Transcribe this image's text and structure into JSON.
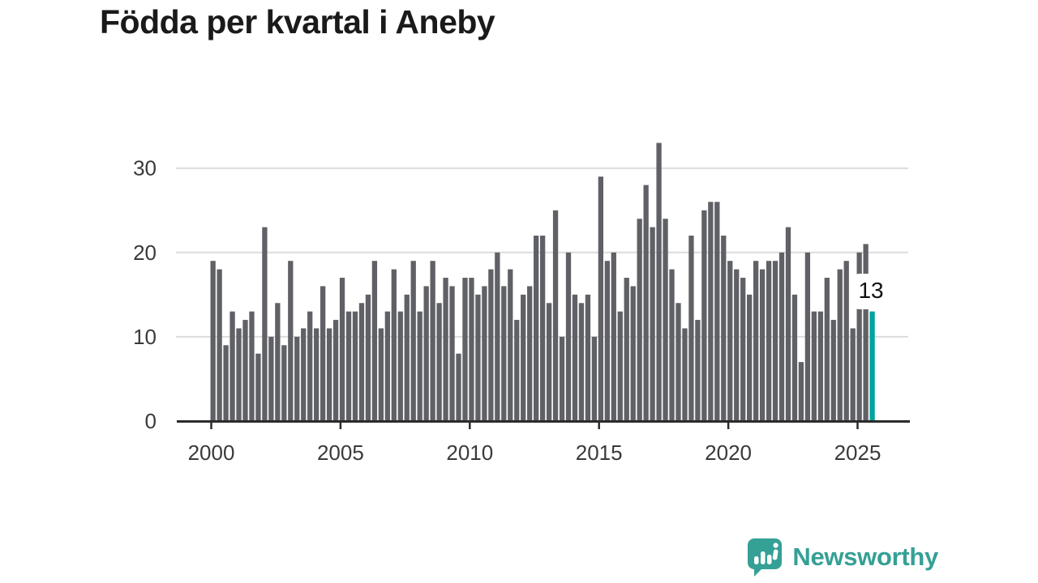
{
  "title": "Födda per kvartal i Aneby",
  "chart_data": {
    "type": "bar",
    "title": "Födda per kvartal i Aneby",
    "x_start_label": "2000 Q1",
    "x_end_label": "2025 Q3",
    "x_tick_labels": [
      "2000",
      "2005",
      "2010",
      "2015",
      "2020",
      "2025"
    ],
    "quarters_per_tick": 20,
    "y_ticks": [
      0,
      10,
      20,
      30
    ],
    "ylim": [
      0,
      33
    ],
    "grid": "horizontal",
    "legend": "none",
    "bar_color": "#606166",
    "values": [
      19,
      18,
      9,
      13,
      11,
      12,
      13,
      8,
      23,
      10,
      14,
      9,
      19,
      10,
      11,
      13,
      11,
      16,
      11,
      12,
      17,
      13,
      13,
      14,
      15,
      19,
      11,
      13,
      18,
      13,
      15,
      19,
      13,
      16,
      19,
      14,
      17,
      16,
      8,
      17,
      17,
      15,
      16,
      18,
      20,
      16,
      18,
      12,
      15,
      16,
      22,
      22,
      14,
      25,
      10,
      20,
      15,
      14,
      15,
      10,
      29,
      19,
      20,
      13,
      17,
      16,
      24,
      28,
      23,
      33,
      24,
      18,
      14,
      11,
      22,
      12,
      25,
      26,
      26,
      22,
      19,
      18,
      17,
      15,
      19,
      18,
      19,
      19,
      20,
      23,
      15,
      7,
      20,
      13,
      13,
      17,
      12,
      18,
      19,
      11,
      20,
      21,
      13
    ],
    "highlight": {
      "index": 102,
      "value": 13,
      "label": "13",
      "color": "#00a49e"
    }
  },
  "axis_style": {
    "grid_color": "#dcdcdc",
    "axis_color": "#2b2b2b",
    "label_color": "#3a3a3a"
  },
  "branding": {
    "logo_text": "Newsworthy",
    "logo_color": "#35a095"
  }
}
